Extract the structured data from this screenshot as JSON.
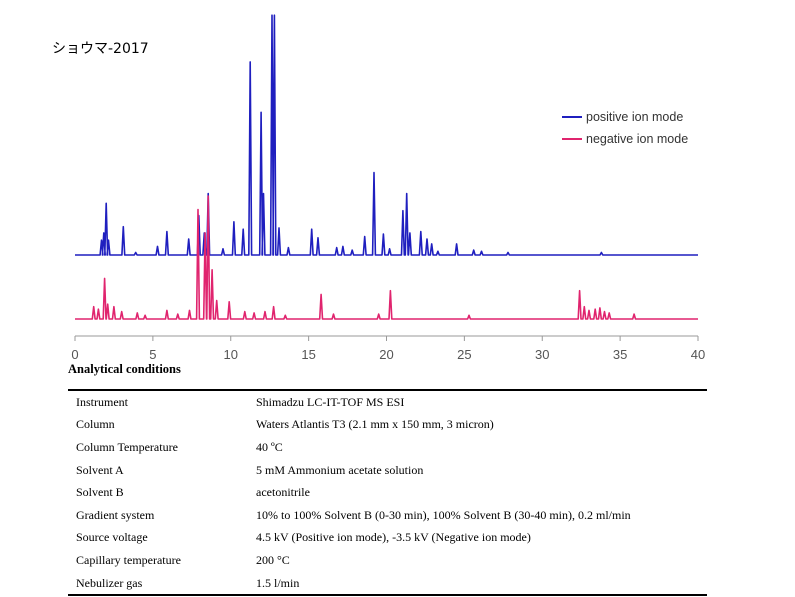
{
  "chart_data": {
    "type": "line",
    "title": "ショウマ-2017",
    "xlabel": "",
    "ylabel": "",
    "xlim": [
      0,
      40
    ],
    "x_ticks": [
      "0",
      "5",
      "10",
      "15",
      "20",
      "25",
      "30",
      "35",
      "40"
    ],
    "legend_position": "top-right",
    "grid": false,
    "series": [
      {
        "name": "positive ion mode",
        "color": "#1f1fbf",
        "peaks": [
          [
            1.7,
            0.12
          ],
          [
            1.85,
            0.18
          ],
          [
            2.0,
            0.42
          ],
          [
            2.15,
            0.12
          ],
          [
            3.1,
            0.23
          ],
          [
            3.9,
            0.02
          ],
          [
            5.3,
            0.07
          ],
          [
            5.9,
            0.19
          ],
          [
            7.3,
            0.13
          ],
          [
            7.95,
            0.32
          ],
          [
            8.3,
            0.18
          ],
          [
            8.55,
            0.5
          ],
          [
            9.5,
            0.05
          ],
          [
            10.2,
            0.27
          ],
          [
            10.8,
            0.21
          ],
          [
            11.25,
            1.57
          ],
          [
            11.95,
            1.16
          ],
          [
            12.1,
            0.5
          ],
          [
            12.65,
            1.95
          ],
          [
            12.8,
            1.95
          ],
          [
            13.1,
            0.22
          ],
          [
            13.7,
            0.06
          ],
          [
            15.2,
            0.21
          ],
          [
            15.6,
            0.14
          ],
          [
            16.8,
            0.06
          ],
          [
            17.2,
            0.07
          ],
          [
            17.8,
            0.04
          ],
          [
            18.6,
            0.15
          ],
          [
            19.2,
            0.67
          ],
          [
            19.8,
            0.17
          ],
          [
            20.2,
            0.05
          ],
          [
            21.05,
            0.36
          ],
          [
            21.3,
            0.5
          ],
          [
            21.5,
            0.18
          ],
          [
            22.2,
            0.19
          ],
          [
            22.6,
            0.13
          ],
          [
            22.9,
            0.09
          ],
          [
            23.3,
            0.03
          ],
          [
            24.5,
            0.09
          ],
          [
            25.6,
            0.04
          ],
          [
            26.1,
            0.03
          ],
          [
            27.8,
            0.02
          ],
          [
            33.8,
            0.02
          ]
        ]
      },
      {
        "name": "negative ion mode",
        "color": "#e0246e",
        "peaks": [
          [
            1.2,
            0.1
          ],
          [
            1.5,
            0.08
          ],
          [
            1.9,
            0.33
          ],
          [
            2.1,
            0.12
          ],
          [
            2.5,
            0.1
          ],
          [
            3.0,
            0.06
          ],
          [
            4.0,
            0.05
          ],
          [
            4.5,
            0.03
          ],
          [
            5.9,
            0.07
          ],
          [
            6.6,
            0.04
          ],
          [
            7.35,
            0.07
          ],
          [
            7.9,
            0.89
          ],
          [
            8.35,
            0.7
          ],
          [
            8.55,
            1.0
          ],
          [
            8.8,
            0.4
          ],
          [
            9.1,
            0.15
          ],
          [
            9.9,
            0.14
          ],
          [
            10.9,
            0.06
          ],
          [
            11.5,
            0.05
          ],
          [
            12.2,
            0.06
          ],
          [
            12.75,
            0.1
          ],
          [
            13.5,
            0.03
          ],
          [
            15.8,
            0.2
          ],
          [
            16.6,
            0.04
          ],
          [
            19.5,
            0.04
          ],
          [
            20.25,
            0.23
          ],
          [
            25.3,
            0.03
          ],
          [
            32.4,
            0.23
          ],
          [
            32.7,
            0.1
          ],
          [
            33.0,
            0.07
          ],
          [
            33.4,
            0.08
          ],
          [
            33.7,
            0.09
          ],
          [
            34.0,
            0.06
          ],
          [
            34.3,
            0.05
          ],
          [
            35.9,
            0.04
          ]
        ]
      }
    ]
  },
  "conditions": {
    "title": "Analytical conditions",
    "rows": [
      {
        "label": "Instrument",
        "value": "Shimadzu LC-IT-TOF MS ESI"
      },
      {
        "label": "Column",
        "value": "Waters Atlantis T3 (2.1 mm x 150 mm, 3 micron)"
      },
      {
        "label": "Column Temperature",
        "value": "40 ºC"
      },
      {
        "label": "Solvent A",
        "value": "5 mM Ammonium acetate solution"
      },
      {
        "label": "Solvent B",
        "value": "acetonitrile"
      },
      {
        "label": "Gradient system",
        "value": "10% to 100% Solvent B (0-30 min), 100% Solvent B (30-40 min), 0.2 ml/min"
      },
      {
        "label": "Source voltage",
        "value": "4.5 kV (Positive ion mode), -3.5 kV (Negative ion mode)"
      },
      {
        "label": "Capillary temperature",
        "value": "200 °C"
      },
      {
        "label": "Nebulizer gas",
        "value": "1.5 l/min"
      }
    ]
  }
}
